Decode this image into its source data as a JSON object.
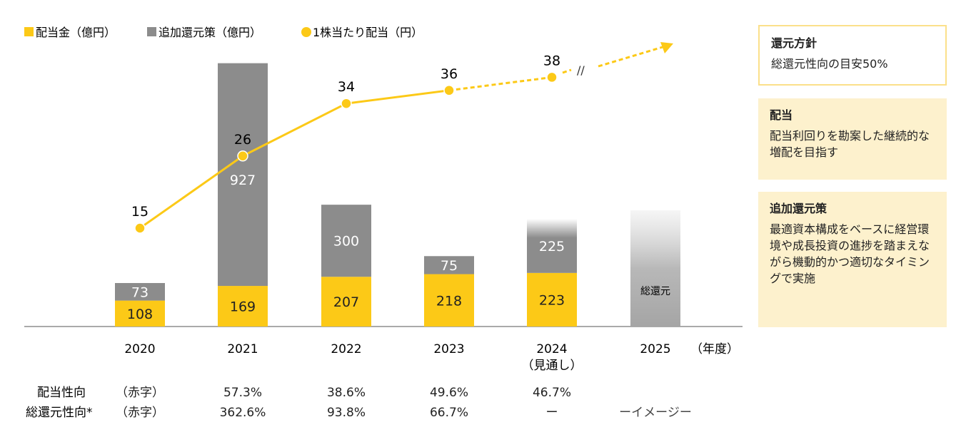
{
  "chart_data": {
    "type": "bar",
    "categories": [
      "2020",
      "2021",
      "2022",
      "2023",
      "2024",
      "2025"
    ],
    "category_sublabels": [
      "",
      "",
      "",
      "",
      "（見通し）",
      ""
    ],
    "x_unit": "（年度）",
    "legend": [
      "配当金（億円）",
      "追加還元策（億円）",
      "1株当たり配当（円）"
    ],
    "legend_placement": "top-left",
    "series": [
      {
        "name": "配当金（億円）",
        "kind": "stacked-bar",
        "color": "#fcc917",
        "values": [
          108,
          169,
          207,
          218,
          223,
          null
        ]
      },
      {
        "name": "追加還元策（億円）",
        "kind": "stacked-bar",
        "color": "#8c8c8c",
        "values": [
          73,
          927,
          300,
          75,
          225,
          null
        ]
      },
      {
        "name": "1株当たり配当（円）",
        "kind": "line",
        "color": "#fcc917",
        "values": [
          15,
          26,
          34,
          36,
          38,
          null
        ],
        "dashed_from": "2023"
      }
    ],
    "image_bar": {
      "category": "2025",
      "label": "総還元"
    },
    "break_mark": "//",
    "table": {
      "rows": [
        {
          "label": "配当性向",
          "values": [
            "（赤字）",
            "57.3%",
            "38.6%",
            "49.6%",
            "46.7%",
            ""
          ]
        },
        {
          "label": "総還元性向*",
          "values": [
            "（赤字）",
            "362.6%",
            "93.8%",
            "66.7%",
            "ー",
            "ーイメージー"
          ]
        }
      ]
    }
  },
  "panels": [
    {
      "title": "還元方針",
      "body": "総還元性向の目安50%"
    },
    {
      "title": "配当",
      "body": "配当利回りを勘案した継続的な増配を目指す"
    },
    {
      "title": "追加還元策",
      "body": "最適資本構成をベースに経営環境や成長投資の進捗を踏まえながら機動的かつ適切なタイミングで実施"
    }
  ]
}
